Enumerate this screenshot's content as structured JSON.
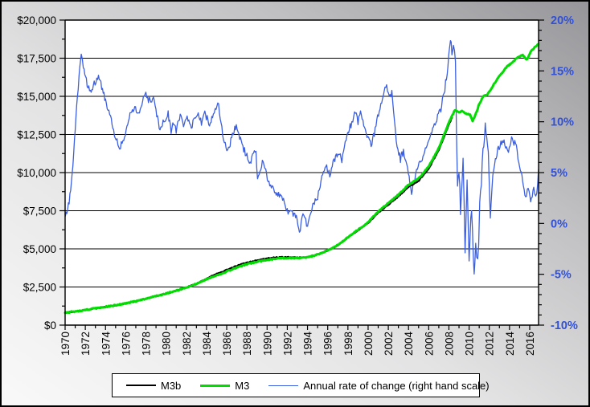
{
  "chart_data": {
    "type": "line",
    "title": "",
    "grid": "horizontal-only",
    "x_axis": {
      "label": "",
      "range": [
        1969.95,
        2016.87
      ],
      "major_tick_labels": [
        "1970",
        "1972",
        "1974",
        "1976",
        "1978",
        "1980",
        "1982",
        "1984",
        "1986",
        "1988",
        "1990",
        "1992",
        "1994",
        "1996",
        "1998",
        "2000",
        "2002",
        "2004",
        "2006",
        "2008",
        "2010",
        "2012",
        "2014",
        "2016"
      ],
      "major_tick_years": [
        1970,
        1972,
        1974,
        1976,
        1978,
        1980,
        1982,
        1984,
        1986,
        1988,
        1990,
        1992,
        1994,
        1996,
        1998,
        2000,
        2002,
        2004,
        2006,
        2008,
        2010,
        2012,
        2014,
        2016
      ],
      "minor_tick_interval_years": 1
    },
    "y_axis_left": {
      "range": [
        0,
        20000
      ],
      "major_step": 2500,
      "minor_step": 1250,
      "tick_values": [
        20000,
        17500,
        15000,
        12500,
        10000,
        7500,
        5000,
        2500,
        0
      ],
      "tick_labels": [
        "$20,000",
        "$17,500",
        "$15,000",
        "$12,500",
        "$10,000",
        "$7,500",
        "$5,000",
        "$2,500",
        "$0"
      ],
      "label_color": "#000000"
    },
    "y_axis_right": {
      "range": [
        -10,
        20
      ],
      "major_step": 5,
      "minor_step": 1,
      "tick_values": [
        20,
        15,
        10,
        5,
        0,
        -5,
        -10
      ],
      "tick_labels": [
        "20%",
        "15%",
        "10%",
        "5%",
        "0%",
        "-5%",
        "-10%"
      ],
      "label_color": "#3050D8"
    },
    "legend": {
      "position": "bottom-center",
      "entries": [
        "M3b",
        "M3",
        "Annual rate of change (right hand scale)"
      ]
    },
    "series": [
      {
        "name": "M3b",
        "color": "#000000",
        "width": 2.2,
        "scale": "left",
        "jitter": 30,
        "points": [
          [
            1969.95,
            820
          ],
          [
            1971,
            890
          ],
          [
            1972,
            990
          ],
          [
            1973,
            1100
          ],
          [
            1974,
            1200
          ],
          [
            1975,
            1300
          ],
          [
            1976,
            1420
          ],
          [
            1977,
            1570
          ],
          [
            1978,
            1730
          ],
          [
            1979,
            1900
          ],
          [
            1980,
            2070
          ],
          [
            1981,
            2260
          ],
          [
            1982,
            2470
          ],
          [
            1983,
            2720
          ],
          [
            1984,
            3060
          ],
          [
            1985,
            3360
          ],
          [
            1986,
            3620
          ],
          [
            1987,
            3890
          ],
          [
            1988,
            4100
          ],
          [
            1989,
            4250
          ],
          [
            1990,
            4380
          ],
          [
            1991,
            4450
          ],
          [
            1992,
            4460
          ],
          [
            1993,
            4430
          ],
          [
            1994,
            4460
          ],
          [
            1995,
            4630
          ],
          [
            1996,
            4890
          ],
          [
            1997,
            5230
          ],
          [
            1998,
            5730
          ],
          [
            1999,
            6220
          ],
          [
            2000,
            6680
          ],
          [
            2001,
            7360
          ],
          [
            2002,
            7900
          ],
          [
            2003,
            8430
          ],
          [
            2004,
            9060
          ],
          [
            2005,
            9460
          ],
          [
            2006,
            10260
          ],
          [
            2007,
            11480
          ],
          [
            2008,
            13150
          ],
          [
            2008.3,
            13600
          ]
        ]
      },
      {
        "name": "M3",
        "color": "#00DC00",
        "width": 3,
        "scale": "left",
        "jitter": 35,
        "points": [
          [
            1969.95,
            820
          ],
          [
            1971,
            890
          ],
          [
            1972,
            990
          ],
          [
            1973,
            1100
          ],
          [
            1974,
            1200
          ],
          [
            1975,
            1300
          ],
          [
            1976,
            1420
          ],
          [
            1977,
            1570
          ],
          [
            1978,
            1730
          ],
          [
            1979,
            1900
          ],
          [
            1980,
            2070
          ],
          [
            1981,
            2260
          ],
          [
            1982,
            2460
          ],
          [
            1983,
            2700
          ],
          [
            1984,
            2990
          ],
          [
            1985,
            3250
          ],
          [
            1986,
            3520
          ],
          [
            1987,
            3780
          ],
          [
            1988,
            4000
          ],
          [
            1989,
            4150
          ],
          [
            1990,
            4280
          ],
          [
            1991,
            4370
          ],
          [
            1992,
            4400
          ],
          [
            1993,
            4400
          ],
          [
            1994,
            4440
          ],
          [
            1995,
            4620
          ],
          [
            1996,
            4900
          ],
          [
            1997,
            5250
          ],
          [
            1998,
            5760
          ],
          [
            1999,
            6250
          ],
          [
            2000,
            6750
          ],
          [
            2001,
            7450
          ],
          [
            2002,
            8000
          ],
          [
            2003,
            8550
          ],
          [
            2004,
            9200
          ],
          [
            2005,
            9600
          ],
          [
            2006,
            10400
          ],
          [
            2007,
            11600
          ],
          [
            2008,
            13300
          ],
          [
            2008.6,
            14100
          ],
          [
            2009,
            13950
          ],
          [
            2009.3,
            14050
          ],
          [
            2009.6,
            13900
          ],
          [
            2010.1,
            13800
          ],
          [
            2010.35,
            13400
          ],
          [
            2010.7,
            13900
          ],
          [
            2011,
            14500
          ],
          [
            2011.45,
            15050
          ],
          [
            2011.8,
            15100
          ],
          [
            2012,
            15300
          ],
          [
            2012.55,
            15900
          ],
          [
            2013.2,
            16500
          ],
          [
            2013.75,
            16950
          ],
          [
            2014.25,
            17200
          ],
          [
            2014.8,
            17550
          ],
          [
            2015.3,
            17720
          ],
          [
            2015.7,
            17400
          ],
          [
            2016.1,
            17900
          ],
          [
            2016.5,
            18250
          ],
          [
            2016.87,
            18400
          ]
        ]
      },
      {
        "name": "Annual rate of change (right hand scale)",
        "color": "#3B5FE1",
        "width": 1.3,
        "scale": "right",
        "jitter": 0.35,
        "jitter_boost": {
          "from": 2008.7,
          "to": 2011.4,
          "factor": 3.2
        },
        "points": [
          [
            1969.95,
            1.2
          ],
          [
            1970.1,
            0.8
          ],
          [
            1970.4,
            2.2
          ],
          [
            1970.7,
            4.8
          ],
          [
            1971,
            9.5
          ],
          [
            1971.3,
            13.5
          ],
          [
            1971.6,
            16.7
          ],
          [
            1971.8,
            15.4
          ],
          [
            1972.1,
            14
          ],
          [
            1972.5,
            12.9
          ],
          [
            1972.8,
            13.7
          ],
          [
            1973.3,
            14.4
          ],
          [
            1973.7,
            13.2
          ],
          [
            1974,
            12.1
          ],
          [
            1974.5,
            10.5
          ],
          [
            1974.8,
            9
          ],
          [
            1975.05,
            8.2
          ],
          [
            1975.4,
            7.4
          ],
          [
            1975.8,
            8.2
          ],
          [
            1976.2,
            9.7
          ],
          [
            1976.5,
            10.9
          ],
          [
            1976.9,
            11.3
          ],
          [
            1977.2,
            10.8
          ],
          [
            1977.6,
            11.8
          ],
          [
            1978,
            12.9
          ],
          [
            1978.25,
            12.1
          ],
          [
            1978.5,
            12.2
          ],
          [
            1978.75,
            12.1
          ],
          [
            1979.15,
            10.5
          ],
          [
            1979.4,
            9.1
          ],
          [
            1979.7,
            10
          ],
          [
            1979.9,
            9.9
          ],
          [
            1980.2,
            10.8
          ],
          [
            1980.5,
            8.9
          ],
          [
            1980.75,
            9.9
          ],
          [
            1981,
            9.1
          ],
          [
            1981.4,
            10.8
          ],
          [
            1981.8,
            9.6
          ],
          [
            1982,
            10.4
          ],
          [
            1982.5,
            9.5
          ],
          [
            1982.9,
            10.5
          ],
          [
            1983.1,
            10.9
          ],
          [
            1983.5,
            10
          ],
          [
            1983.75,
            11.1
          ],
          [
            1984.3,
            9.7
          ],
          [
            1984.6,
            10.6
          ],
          [
            1985.2,
            11.7
          ],
          [
            1985.6,
            8.7
          ],
          [
            1986.1,
            7.1
          ],
          [
            1986.65,
            9
          ],
          [
            1986.95,
            9.5
          ],
          [
            1987.45,
            7.9
          ],
          [
            1988,
            6.6
          ],
          [
            1988.4,
            6
          ],
          [
            1988.65,
            7.2
          ],
          [
            1988.9,
            6.8
          ],
          [
            1989.05,
            4.5
          ],
          [
            1989.45,
            5.8
          ],
          [
            1989.7,
            6
          ],
          [
            1990.1,
            4.2
          ],
          [
            1990.5,
            3.7
          ],
          [
            1990.9,
            2.9
          ],
          [
            1991.3,
            2.6
          ],
          [
            1991.45,
            2.9
          ],
          [
            1991.8,
            1.4
          ],
          [
            1992,
            1.3
          ],
          [
            1992.3,
            1
          ],
          [
            1992.5,
            1.1
          ],
          [
            1992.9,
            0.5
          ],
          [
            1993.2,
            -0.8
          ],
          [
            1993.55,
            0.8
          ],
          [
            1994,
            -0.2
          ],
          [
            1994.6,
            2.1
          ],
          [
            1995,
            2.6
          ],
          [
            1995.5,
            4.7
          ],
          [
            1995.9,
            5.5
          ],
          [
            1996.2,
            4.9
          ],
          [
            1996.7,
            6.3
          ],
          [
            1997,
            6.9
          ],
          [
            1997.4,
            6.3
          ],
          [
            1997.9,
            8.7
          ],
          [
            1998.3,
            9.7
          ],
          [
            1998.75,
            10.9
          ],
          [
            1999,
            10
          ],
          [
            1999.25,
            11.2
          ],
          [
            1999.65,
            9.3
          ],
          [
            2000.05,
            8.3
          ],
          [
            2000.3,
            7.5
          ],
          [
            2000.7,
            9.2
          ],
          [
            2001.1,
            11.2
          ],
          [
            2001.75,
            13.6
          ],
          [
            2002.1,
            12.4
          ],
          [
            2002.35,
            12.8
          ],
          [
            2002.7,
            8.9
          ],
          [
            2002.95,
            7.2
          ],
          [
            2003.2,
            6.3
          ],
          [
            2003.5,
            7.1
          ],
          [
            2003.9,
            5.2
          ],
          [
            2004.3,
            3.1
          ],
          [
            2004.8,
            5.2
          ],
          [
            2005.2,
            6
          ],
          [
            2005.75,
            7.6
          ],
          [
            2006.3,
            8.9
          ],
          [
            2006.8,
            10.2
          ],
          [
            2007.2,
            11.3
          ],
          [
            2007.6,
            13.3
          ],
          [
            2007.9,
            15.5
          ],
          [
            2008.15,
            18.2
          ],
          [
            2008.3,
            16.8
          ],
          [
            2008.45,
            17.5
          ],
          [
            2008.65,
            16
          ],
          [
            2008.85,
            3.8
          ],
          [
            2009,
            5.5
          ],
          [
            2009.15,
            0.8
          ],
          [
            2009.4,
            6.5
          ],
          [
            2009.6,
            -2.9
          ],
          [
            2009.8,
            4
          ],
          [
            2010,
            -3.5
          ],
          [
            2010.25,
            2
          ],
          [
            2010.5,
            -5.4
          ],
          [
            2010.65,
            -1.5
          ],
          [
            2010.85,
            -4.5
          ],
          [
            2011.05,
            1
          ],
          [
            2011.3,
            5.5
          ],
          [
            2011.6,
            9.8
          ],
          [
            2011.9,
            6.8
          ],
          [
            2012.1,
            0.5
          ],
          [
            2012.35,
            4.8
          ],
          [
            2012.6,
            6.3
          ],
          [
            2012.9,
            7.4
          ],
          [
            2013.3,
            8.2
          ],
          [
            2013.7,
            7.4
          ],
          [
            2013.9,
            7.2
          ],
          [
            2014.2,
            8.3
          ],
          [
            2014.6,
            7.8
          ],
          [
            2015,
            5.7
          ],
          [
            2015.3,
            4.1
          ],
          [
            2015.6,
            2.7
          ],
          [
            2015.85,
            3.5
          ],
          [
            2016.1,
            2
          ],
          [
            2016.4,
            3.3
          ],
          [
            2016.6,
            2.4
          ],
          [
            2016.8,
            3.9
          ],
          [
            2016.87,
            5.3
          ]
        ]
      }
    ],
    "colors": {
      "plot_background": "#FFFFFF",
      "gridline": "#000000",
      "axis": "#000000",
      "outer_background_light": "#F9F9F9",
      "outer_background_dark": "#96969A"
    }
  }
}
